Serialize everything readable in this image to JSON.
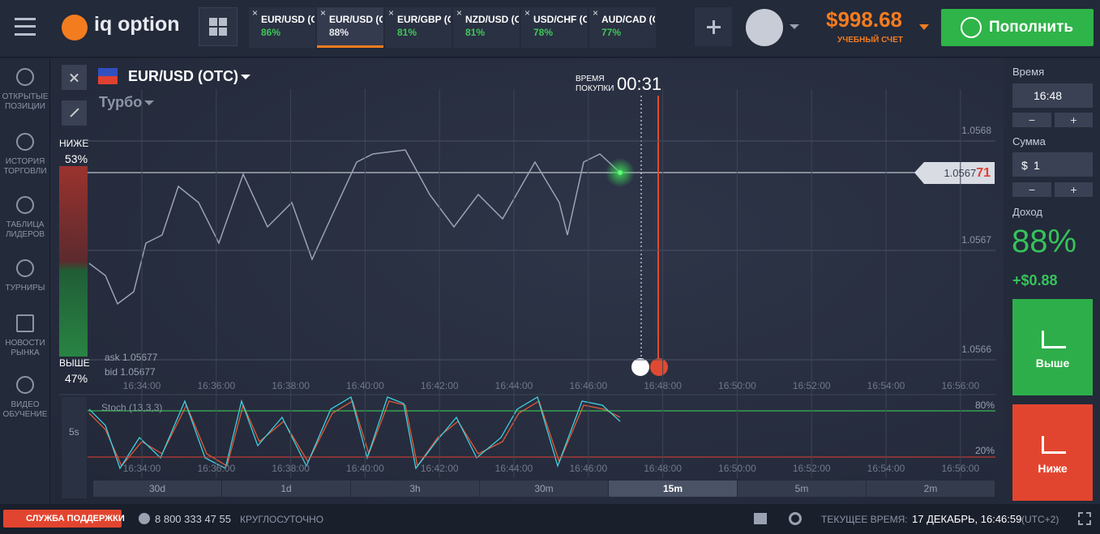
{
  "header": {
    "logo": "iq option",
    "tabs": [
      {
        "pair": "EUR/USD (O",
        "payout": "86%"
      },
      {
        "pair": "EUR/USD (O",
        "payout": "88%"
      },
      {
        "pair": "EUR/GBP (O",
        "payout": "81%"
      },
      {
        "pair": "NZD/USD (O",
        "payout": "81%"
      },
      {
        "pair": "USD/CHF (O",
        "payout": "78%"
      },
      {
        "pair": "AUD/CAD (OTC)",
        "payout": "77%"
      }
    ],
    "balance": "$998.68",
    "account": "УЧЕБНЫЙ СЧЕТ",
    "deposit": "Пополнить"
  },
  "sidebar": [
    "ОТКРЫТЫЕ ПОЗИЦИИ",
    "ИСТОРИЯ ТОРГОВЛИ",
    "ТАБЛИЦА ЛИДЕРОВ",
    "ТУРНИРЫ",
    "НОВОСТИ РЫНКА",
    "ВИДЕО ОБУЧЕНИЕ"
  ],
  "chart": {
    "asset": "EUR/USD (OTC)",
    "mode": "Турбо",
    "down_label": "НИЖЕ",
    "down_pct": "53%",
    "up_label": "ВЫШЕ",
    "up_pct": "47%",
    "buy_time_label": [
      "ВРЕМЯ",
      "ПОКУПКИ"
    ],
    "buy_time": "00:31",
    "price_levels": [
      "1.0568",
      "1.0567",
      "1.0566"
    ],
    "current_price": [
      "1.0567",
      "71"
    ],
    "ask": "ask 1.05677",
    "bid": "bid 1.05677",
    "times": [
      "16:34:00",
      "16:36:00",
      "16:38:00",
      "16:40:00",
      "16:42:00",
      "16:44:00",
      "16:46:00",
      "16:48:00",
      "16:50:00",
      "16:52:00",
      "16:54:00",
      "16:56:00"
    ],
    "indicator": "Stoch (13,3,3)",
    "stoch_levels": [
      "80%",
      "20%"
    ],
    "interval": "5s",
    "timeframes": [
      "30d",
      "1d",
      "3h",
      "30m",
      "15m",
      "5m",
      "2m"
    ],
    "active_timeframe": 4
  },
  "panel": {
    "time_label": "Время",
    "time": "16:48",
    "amount_label": "Сумма",
    "currency": "$",
    "amount": "1",
    "income_label": "Доход",
    "income_pct": "88%",
    "income": "+$0.88",
    "up": "Выше",
    "down": "Ниже",
    "minus": "−",
    "plus": "+"
  },
  "footer": {
    "support": "СЛУЖБА ПОДДЕРЖКИ",
    "phone": "8 800 333 47 55",
    "hours": "КРУГЛОСУТОЧНО",
    "time_label": "ТЕКУЩЕЕ ВРЕМЯ:",
    "time": "17 ДЕКАБРЬ, 16:46:59",
    "tz": "(UTC+2)"
  }
}
